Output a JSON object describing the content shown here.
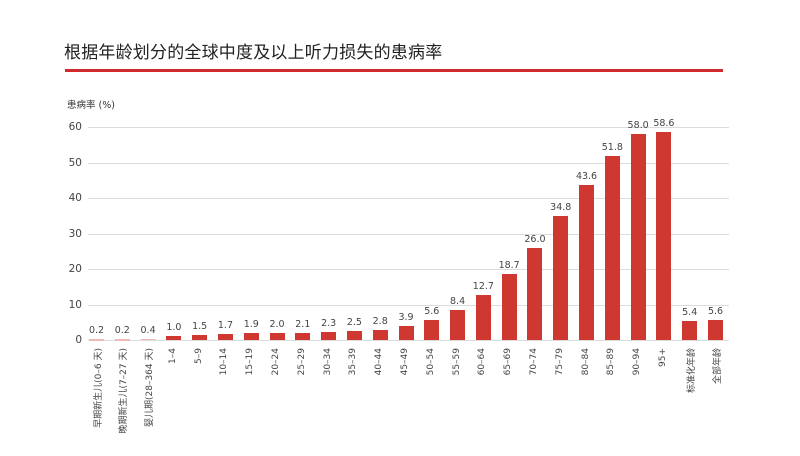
{
  "header": {
    "title": "根据年龄划分的全球中度及以上听力损失的患病率"
  },
  "colors": {
    "accent": "#cf2a2e",
    "bar": "#cf3731",
    "grid": "#dcdcdc"
  },
  "chart_data": {
    "type": "bar",
    "title": "根据年龄划分的全球中度及以上听力损失的患病率",
    "xlabel": "",
    "ylabel": "患病率 (%)",
    "ylim": [
      0,
      60
    ],
    "yticks": [
      "0",
      "10",
      "20",
      "30",
      "40",
      "50",
      "60"
    ],
    "grid": true,
    "legend": null,
    "categories": [
      "早期新生儿(0–6 天)",
      "晚期新生儿(7–27 天)",
      "婴儿期(28–364 天)",
      "1–4",
      "5–9",
      "10–14",
      "15–19",
      "20–24",
      "25–29",
      "30–34",
      "35–39",
      "40–44",
      "45–49",
      "50–54",
      "55–59",
      "60–64",
      "65–69",
      "70–74",
      "75–79",
      "80–84",
      "85–89",
      "90–94",
      "95+",
      "标准化年龄",
      "全部年龄"
    ],
    "values": [
      0.2,
      0.2,
      0.4,
      1.0,
      1.5,
      1.7,
      1.9,
      2.0,
      2.1,
      2.3,
      2.5,
      2.8,
      3.9,
      5.6,
      8.4,
      12.7,
      18.7,
      26.0,
      34.8,
      43.6,
      51.8,
      58.0,
      58.6,
      5.4,
      5.6
    ],
    "value_labels": [
      "0.2",
      "0.2",
      "0.4",
      "1.0",
      "1.5",
      "1.7",
      "1.9",
      "2.0",
      "2.1",
      "2.3",
      "2.5",
      "2.8",
      "3.9",
      "5.6",
      "8.4",
      "12.7",
      "18.7",
      "26.0",
      "34.8",
      "43.6",
      "51.8",
      "58.0",
      "58.6",
      "5.4",
      "5.6"
    ]
  }
}
